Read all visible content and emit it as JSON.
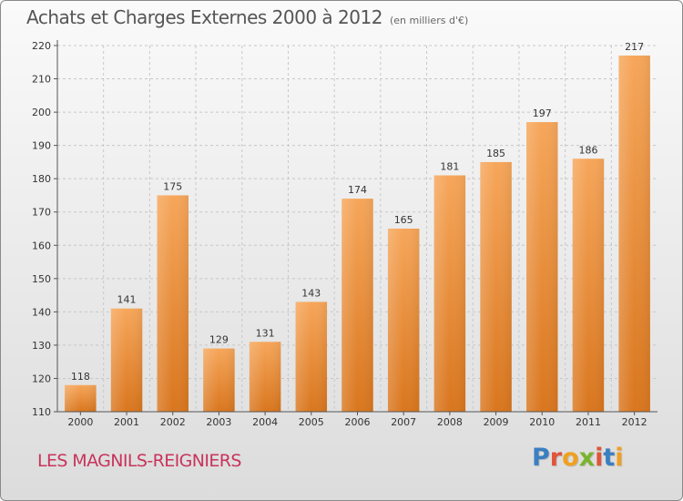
{
  "title": "Achats et Charges Externes 2000 à 2012",
  "unit": "(en milliers d'€)",
  "commune": "LES MAGNILS-REIGNIERS",
  "logo": {
    "text": "Proxiti",
    "colors": [
      "#3a7fc1",
      "#e0543a",
      "#f0a020",
      "#7ab32e",
      "#e0543a",
      "#3a7fc1",
      "#f0a020"
    ]
  },
  "colors": {
    "bar_light": "#f6a65a",
    "bar_dark": "#d9761e",
    "grid": "#c8c8c8",
    "axis": "#555555",
    "commune": "#c8345c"
  },
  "chart_data": {
    "type": "bar",
    "categories": [
      "2000",
      "2001",
      "2002",
      "2003",
      "2004",
      "2005",
      "2006",
      "2007",
      "2008",
      "2009",
      "2010",
      "2011",
      "2012"
    ],
    "values": [
      118,
      141,
      175,
      129,
      131,
      143,
      174,
      165,
      181,
      185,
      197,
      186,
      217
    ],
    "title": "Achats et Charges Externes 2000 à 2012",
    "xlabel": "",
    "ylabel": "",
    "ylim": [
      110,
      220
    ],
    "yticks": [
      110,
      120,
      130,
      140,
      150,
      160,
      170,
      180,
      190,
      200,
      210,
      220
    ],
    "grid": true,
    "legend": "none"
  }
}
